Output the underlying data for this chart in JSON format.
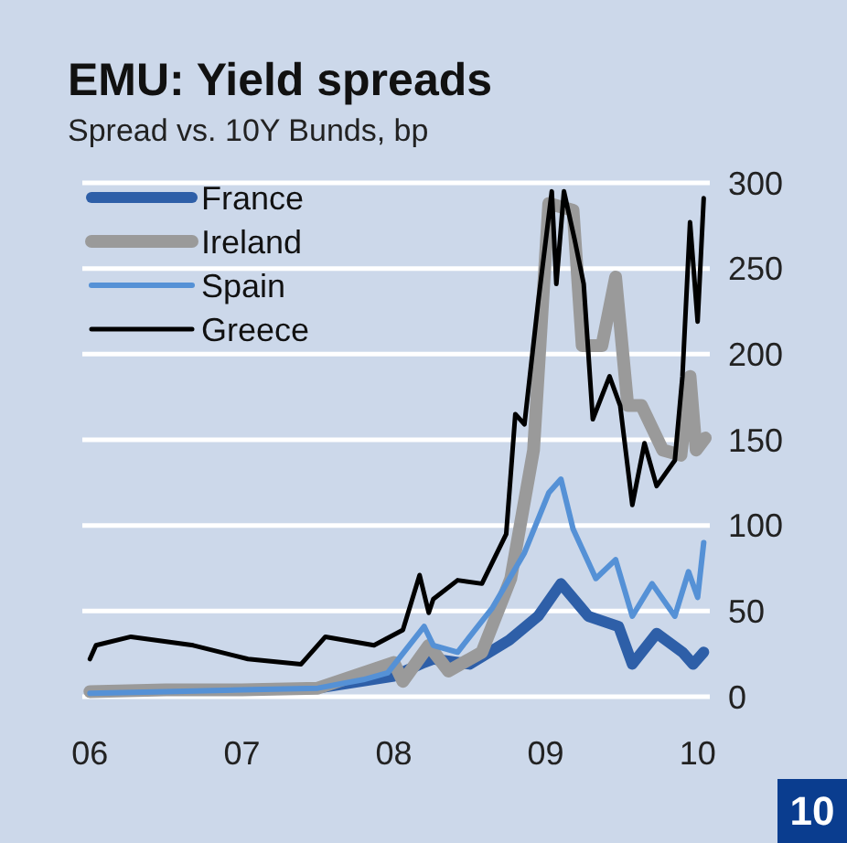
{
  "chart_data": {
    "type": "line",
    "title": "EMU: Yield spreads",
    "subtitle": "Spread vs. 10Y Bunds, bp",
    "annotations": [
      "10"
    ],
    "xlim": [
      2005.95,
      2010.08
    ],
    "xticks": [
      {
        "value": 2006,
        "label": "06"
      },
      {
        "value": 2007,
        "label": "07"
      },
      {
        "value": 2008,
        "label": "08"
      },
      {
        "value": 2009,
        "label": "09"
      },
      {
        "value": 2010,
        "label": "10"
      }
    ],
    "ylim": [
      0,
      300
    ],
    "yticks": [
      0,
      50,
      100,
      150,
      200,
      250,
      300
    ],
    "grid": "y",
    "legend": "top left",
    "series": [
      {
        "name": "France",
        "color": "#2e5fa8",
        "x": [
          2006,
          2006.5,
          2007,
          2007.5,
          2008,
          2008.2,
          2008.26,
          2008.5,
          2008.76,
          2008.95,
          2009.1,
          2009.28,
          2009.48,
          2009.57,
          2009.73,
          2009.9,
          2009.97,
          2010.04
        ],
        "values": [
          3,
          4,
          4,
          5,
          12,
          20,
          22,
          19,
          33,
          47,
          66,
          47,
          41,
          19,
          37,
          26,
          19,
          26
        ]
      },
      {
        "name": "Ireland",
        "color": "#9a9a9a",
        "x": [
          2006,
          2006.5,
          2007,
          2007.5,
          2008,
          2008.06,
          2008.23,
          2008.36,
          2008.58,
          2008.77,
          2008.92,
          2009.02,
          2009.18,
          2009.24,
          2009.37,
          2009.46,
          2009.54,
          2009.63,
          2009.77,
          2009.89,
          2009.95,
          2009.99,
          2010.05
        ],
        "values": [
          3,
          4,
          4,
          5,
          20,
          9,
          30,
          15,
          26,
          69,
          144,
          288,
          284,
          205,
          205,
          245,
          170,
          170,
          144,
          141,
          187,
          144,
          151
        ]
      },
      {
        "name": "Spain",
        "color": "#5591d6",
        "x": [
          2006,
          2006.5,
          2007,
          2007.5,
          2007.8,
          2007.96,
          2008.2,
          2008.26,
          2008.42,
          2008.65,
          2008.86,
          2009.02,
          2009.1,
          2009.18,
          2009.33,
          2009.46,
          2009.57,
          2009.7,
          2009.85,
          2009.94,
          2010.0,
          2010.04
        ],
        "values": [
          2,
          3,
          4,
          5,
          10,
          14,
          41,
          30,
          26,
          52,
          84,
          119,
          127,
          98,
          69,
          80,
          47,
          66,
          47,
          73,
          58,
          90
        ]
      },
      {
        "name": "Greece",
        "color": "#000000",
        "x": [
          2006,
          2006.04,
          2006.27,
          2006.68,
          2007.04,
          2007.39,
          2007.55,
          2007.87,
          2008.06,
          2008.17,
          2008.23,
          2008.26,
          2008.42,
          2008.58,
          2008.74,
          2008.8,
          2008.86,
          2008.95,
          2009.04,
          2009.07,
          2009.12,
          2009.19,
          2009.25,
          2009.31,
          2009.42,
          2009.49,
          2009.57,
          2009.65,
          2009.73,
          2009.85,
          2009.9,
          2009.95,
          2010.0,
          2010.04
        ],
        "values": [
          22,
          30,
          35,
          30,
          22,
          19,
          35,
          30,
          39,
          71,
          49,
          57,
          68,
          66,
          95,
          165,
          159,
          230,
          295,
          241,
          295,
          267,
          241,
          162,
          187,
          170,
          112,
          148,
          123,
          138,
          187,
          277,
          219,
          291
        ]
      }
    ]
  }
}
